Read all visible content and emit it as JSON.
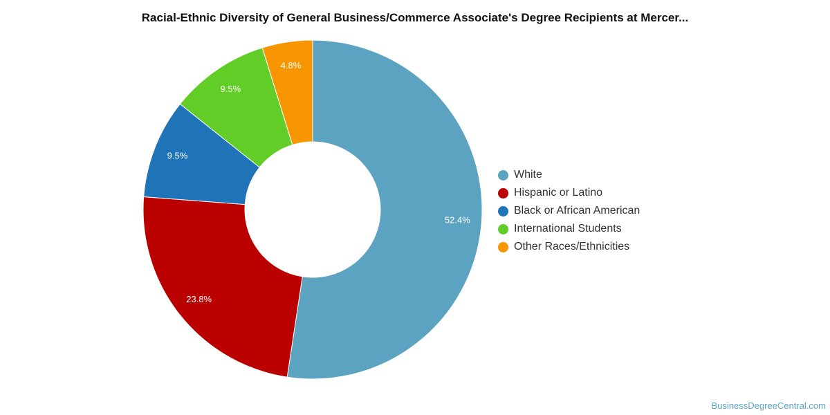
{
  "chart_data": {
    "type": "pie",
    "donut": true,
    "title": "Racial-Ethnic Diversity of General Business/Commerce Associate's Degree Recipients at Mercer...",
    "legend_position": "right",
    "slices": [
      {
        "label": "White",
        "value": 52.4,
        "display": "52.4%",
        "color": "#5ba3c0"
      },
      {
        "label": "Hispanic or Latino",
        "value": 23.8,
        "display": "23.8%",
        "color": "#bb0000"
      },
      {
        "label": "Black or African American",
        "value": 9.5,
        "display": "9.5%",
        "color": "#1f73b7"
      },
      {
        "label": "International Students",
        "value": 9.5,
        "display": "9.5%",
        "color": "#62cd26"
      },
      {
        "label": "Other Races/Ethnicities",
        "value": 4.8,
        "display": "4.8%",
        "color": "#f79600"
      }
    ]
  },
  "watermark": "BusinessDegreeCentral.com"
}
